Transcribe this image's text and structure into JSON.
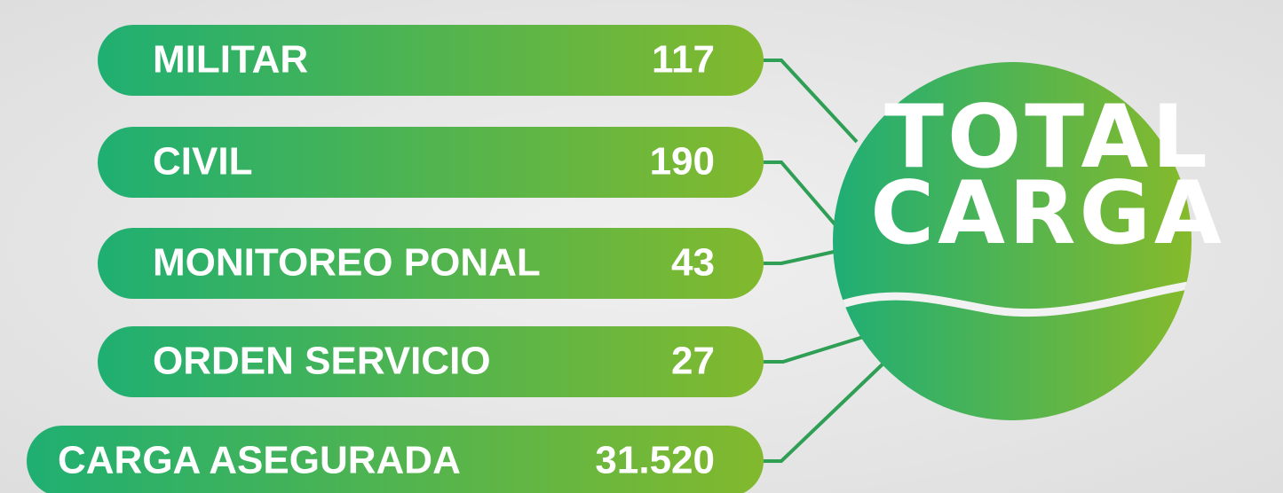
{
  "items": [
    {
      "label": "MILITAR",
      "value": "117"
    },
    {
      "label": "CIVIL",
      "value": "190"
    },
    {
      "label": "MONITOREO PONAL",
      "value": "43"
    },
    {
      "label": "ORDEN SERVICIO",
      "value": "27"
    },
    {
      "label": "CARGA ASEGURADA",
      "value": "31.520"
    }
  ],
  "total": {
    "lines": [
      "TOTAL",
      "CARGA"
    ]
  }
}
